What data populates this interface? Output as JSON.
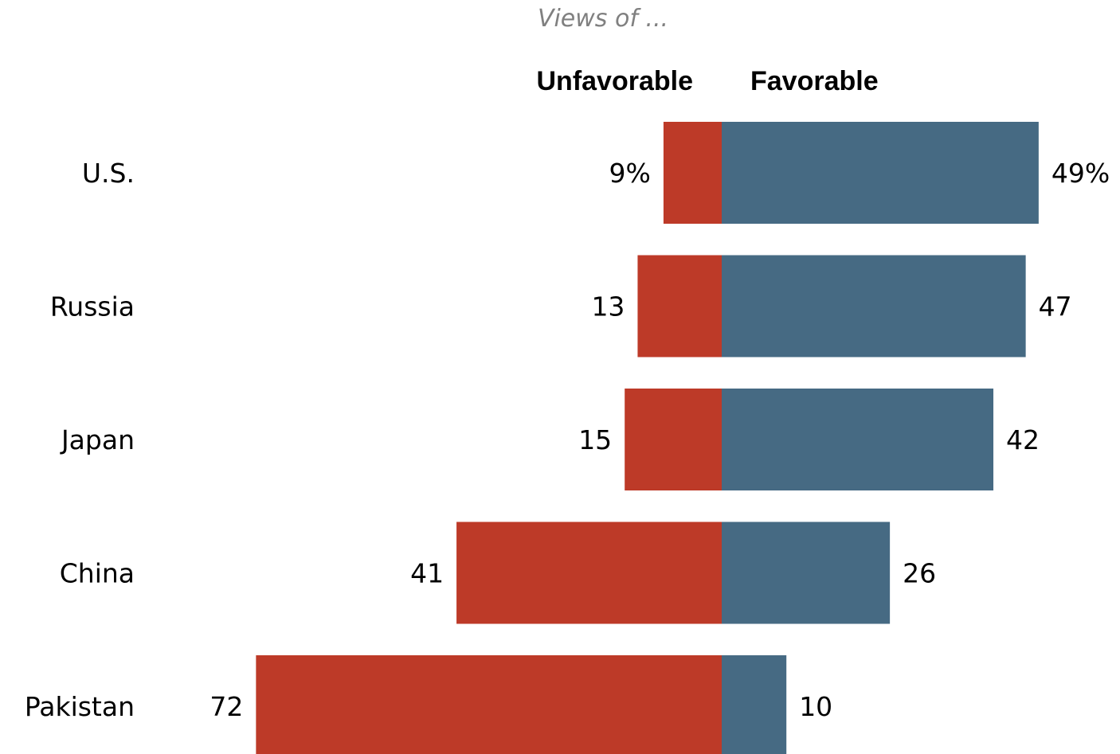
{
  "chart_data": {
    "type": "bar",
    "subtitle": "Views of ...",
    "categories": [
      "U.S.",
      "Russia",
      "Japan",
      "China",
      "Pakistan"
    ],
    "series": [
      {
        "name": "Unfavorable",
        "values": [
          9,
          13,
          15,
          41,
          72
        ],
        "labels": [
          "9%",
          "13",
          "15",
          "41",
          "72"
        ],
        "color": "#bd3a28"
      },
      {
        "name": "Favorable",
        "values": [
          49,
          47,
          42,
          26,
          10
        ],
        "labels": [
          "49%",
          "47",
          "42",
          "26",
          "10"
        ],
        "color": "#466a83"
      }
    ]
  }
}
